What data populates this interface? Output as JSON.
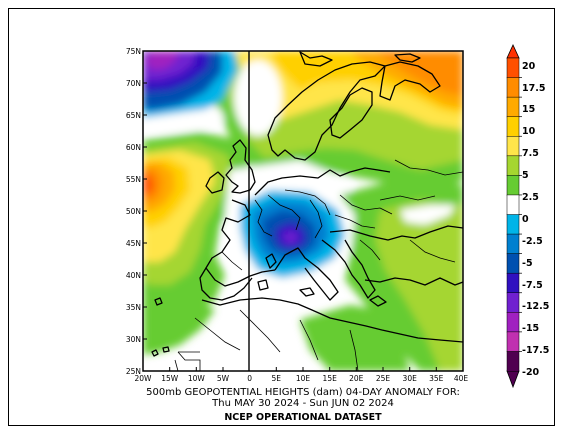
{
  "figure": {
    "title_line1": "500mb GEOPOTENTIAL HEIGHTS (dam)    04-DAY ANOMALY FOR:",
    "title_line2": "Thu MAY 30 2024 - Sun JUN 02 2024",
    "dataset": "NCEP OPERATIONAL DATASET"
  },
  "axes": {
    "lon_labels": [
      "20W",
      "15W",
      "10W",
      "5W",
      "0",
      "5E",
      "10E",
      "15E",
      "20E",
      "25E",
      "30E",
      "35E",
      "40E"
    ],
    "lat_labels": [
      "75N",
      "70N",
      "65N",
      "60N",
      "55N",
      "50N",
      "45N",
      "40N",
      "35N",
      "30N",
      "25N"
    ]
  },
  "colorbar": {
    "labels": [
      "20",
      "17.5",
      "15",
      "10",
      "7.5",
      "5",
      "2.5",
      "0",
      "-2.5",
      "-5",
      "-7.5",
      "-12.5",
      "-15",
      "-17.5",
      "-20"
    ],
    "colors": [
      "#ff5000",
      "#ff8c00",
      "#ffaa00",
      "#ffd000",
      "#ffe54a",
      "#a5d630",
      "#66cc33",
      "#ffffff",
      "#00b4e8",
      "#0080d0",
      "#0050b0",
      "#3010c0",
      "#7020d0",
      "#a020c0",
      "#c030b0",
      "#500050"
    ]
  },
  "anomaly_features": [
    {
      "label": "negative anomaly center",
      "region": "Alps / northern Italy",
      "value_dam": "-10"
    },
    {
      "label": "positive anomaly",
      "region": "eastern Atlantic west of Ireland",
      "value_dam": "15"
    },
    {
      "label": "positive anomaly",
      "region": "northern Scandinavia / Barents",
      "value_dam": "15"
    },
    {
      "label": "negative anomaly",
      "region": "Greenland Sea / Iceland",
      "value_dam": "-15"
    }
  ]
}
